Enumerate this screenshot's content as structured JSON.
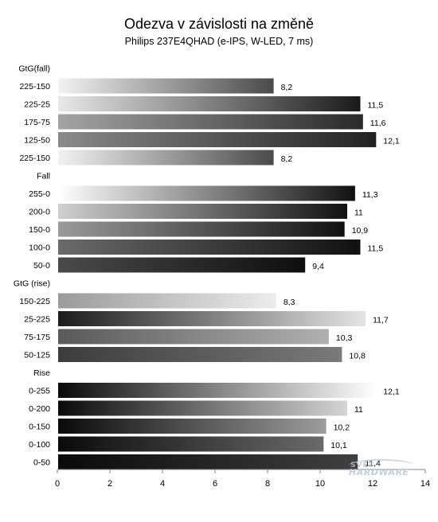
{
  "title": "Odezva v závislosti na změně",
  "subtitle": "Philips 237E4QHAD  (e-IPS, W-LED, 7 ms)",
  "watermark": {
    "line1": "SVĚT",
    "line2": "HARDWARE"
  },
  "chart_data": {
    "type": "bar",
    "orientation": "horizontal",
    "title": "Odezva v závislosti na změně",
    "subtitle": "Philips 237E4QHAD  (e-IPS, W-LED, 7 ms)",
    "xlim": [
      0,
      14
    ],
    "x_ticks": [
      "0",
      "2",
      "4",
      "6",
      "8",
      "10",
      "12",
      "14"
    ],
    "grid": false,
    "rows": [
      {
        "label": "GtG(fall)",
        "header": true
      },
      {
        "label": "225-150",
        "value": 8.2,
        "value_label": "8,2",
        "from": "#f2f2f2",
        "to": "#4a4a4a"
      },
      {
        "label": "225-25",
        "value": 11.5,
        "value_label": "11,5",
        "from": "#e8e8e8",
        "to": "#1a1a1a"
      },
      {
        "label": "175-75",
        "value": 11.6,
        "value_label": "11,6",
        "from": "#a4a4a4",
        "to": "#2a2a2a"
      },
      {
        "label": "125-50",
        "value": 12.1,
        "value_label": "12,1",
        "from": "#8a8a8a",
        "to": "#222222"
      },
      {
        "label": "225-150",
        "value": 8.2,
        "value_label": "8,2",
        "from": "#f2f2f2",
        "to": "#4a4a4a"
      },
      {
        "label": "Fall",
        "header": true
      },
      {
        "label": "255-0",
        "value": 11.3,
        "value_label": "11,3",
        "from": "#ffffff",
        "to": "#111111"
      },
      {
        "label": "200-0",
        "value": 11,
        "value_label": "11",
        "from": "#cfcfcf",
        "to": "#111111"
      },
      {
        "label": "150-0",
        "value": 10.9,
        "value_label": "10,9",
        "from": "#9a9a9a",
        "to": "#111111"
      },
      {
        "label": "100-0",
        "value": 11.5,
        "value_label": "11,5",
        "from": "#6a6a6a",
        "to": "#111111"
      },
      {
        "label": "50-0",
        "value": 9.4,
        "value_label": "9,4",
        "from": "#4a4a4a",
        "to": "#0e0e0e"
      },
      {
        "label": "GtG (rise)",
        "header": true
      },
      {
        "label": "150-225",
        "value": 8.3,
        "value_label": "8,3",
        "from": "#9a9a9a",
        "to": "#ececec"
      },
      {
        "label": "25-225",
        "value": 11.7,
        "value_label": "11,7",
        "from": "#1c1c1c",
        "to": "#e4e4e4"
      },
      {
        "label": "75-175",
        "value": 10.3,
        "value_label": "10,3",
        "from": "#5a5a5a",
        "to": "#b0b0b0"
      },
      {
        "label": "50-125",
        "value": 10.8,
        "value_label": "10,8",
        "from": "#3c3c3c",
        "to": "#7a7a7a"
      },
      {
        "label": "Rise",
        "header": true
      },
      {
        "label": "0-255",
        "value": 12.1,
        "value_label": "12,1",
        "from": "#0a0a0a",
        "to": "#ffffff"
      },
      {
        "label": "0-200",
        "value": 11,
        "value_label": "11",
        "from": "#0a0a0a",
        "to": "#d4d4d4"
      },
      {
        "label": "0-150",
        "value": 10.2,
        "value_label": "10,2",
        "from": "#0a0a0a",
        "to": "#9c9c9c"
      },
      {
        "label": "0-100",
        "value": 10.1,
        "value_label": "10,1",
        "from": "#0a0a0a",
        "to": "#6a6a6a"
      },
      {
        "label": "0-50",
        "value": 11.4,
        "value_label": "11,4",
        "from": "#0a0a0a",
        "to": "#404040"
      }
    ]
  }
}
